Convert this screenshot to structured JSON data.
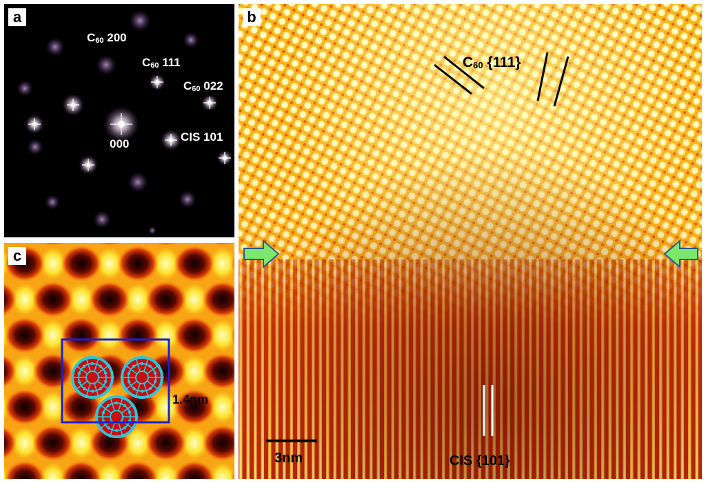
{
  "panel_a": {
    "letter": "a",
    "labels": {
      "c60_200": {
        "prefix": "C",
        "sub": "60",
        "rest": " 200"
      },
      "c60_111": {
        "prefix": "C",
        "sub": "60",
        "rest": " 111"
      },
      "c60_022": {
        "prefix": "C",
        "sub": "60",
        "rest": " 022"
      },
      "cis_101": "CIS 101",
      "origin": "000"
    }
  },
  "panel_b": {
    "letter": "b",
    "c60_label": {
      "prefix": "C",
      "sub": "60",
      "rest": " {111}"
    },
    "cis_label": "CIS {101}",
    "scale_label": "3nm"
  },
  "panel_c": {
    "letter": "c",
    "scale_label": "1.4nm"
  },
  "colors": {
    "arrow": "#7be86b",
    "cell_box": "#1a1fd6",
    "carbon": "#2fc4d8",
    "c60_core": "#c41010"
  }
}
